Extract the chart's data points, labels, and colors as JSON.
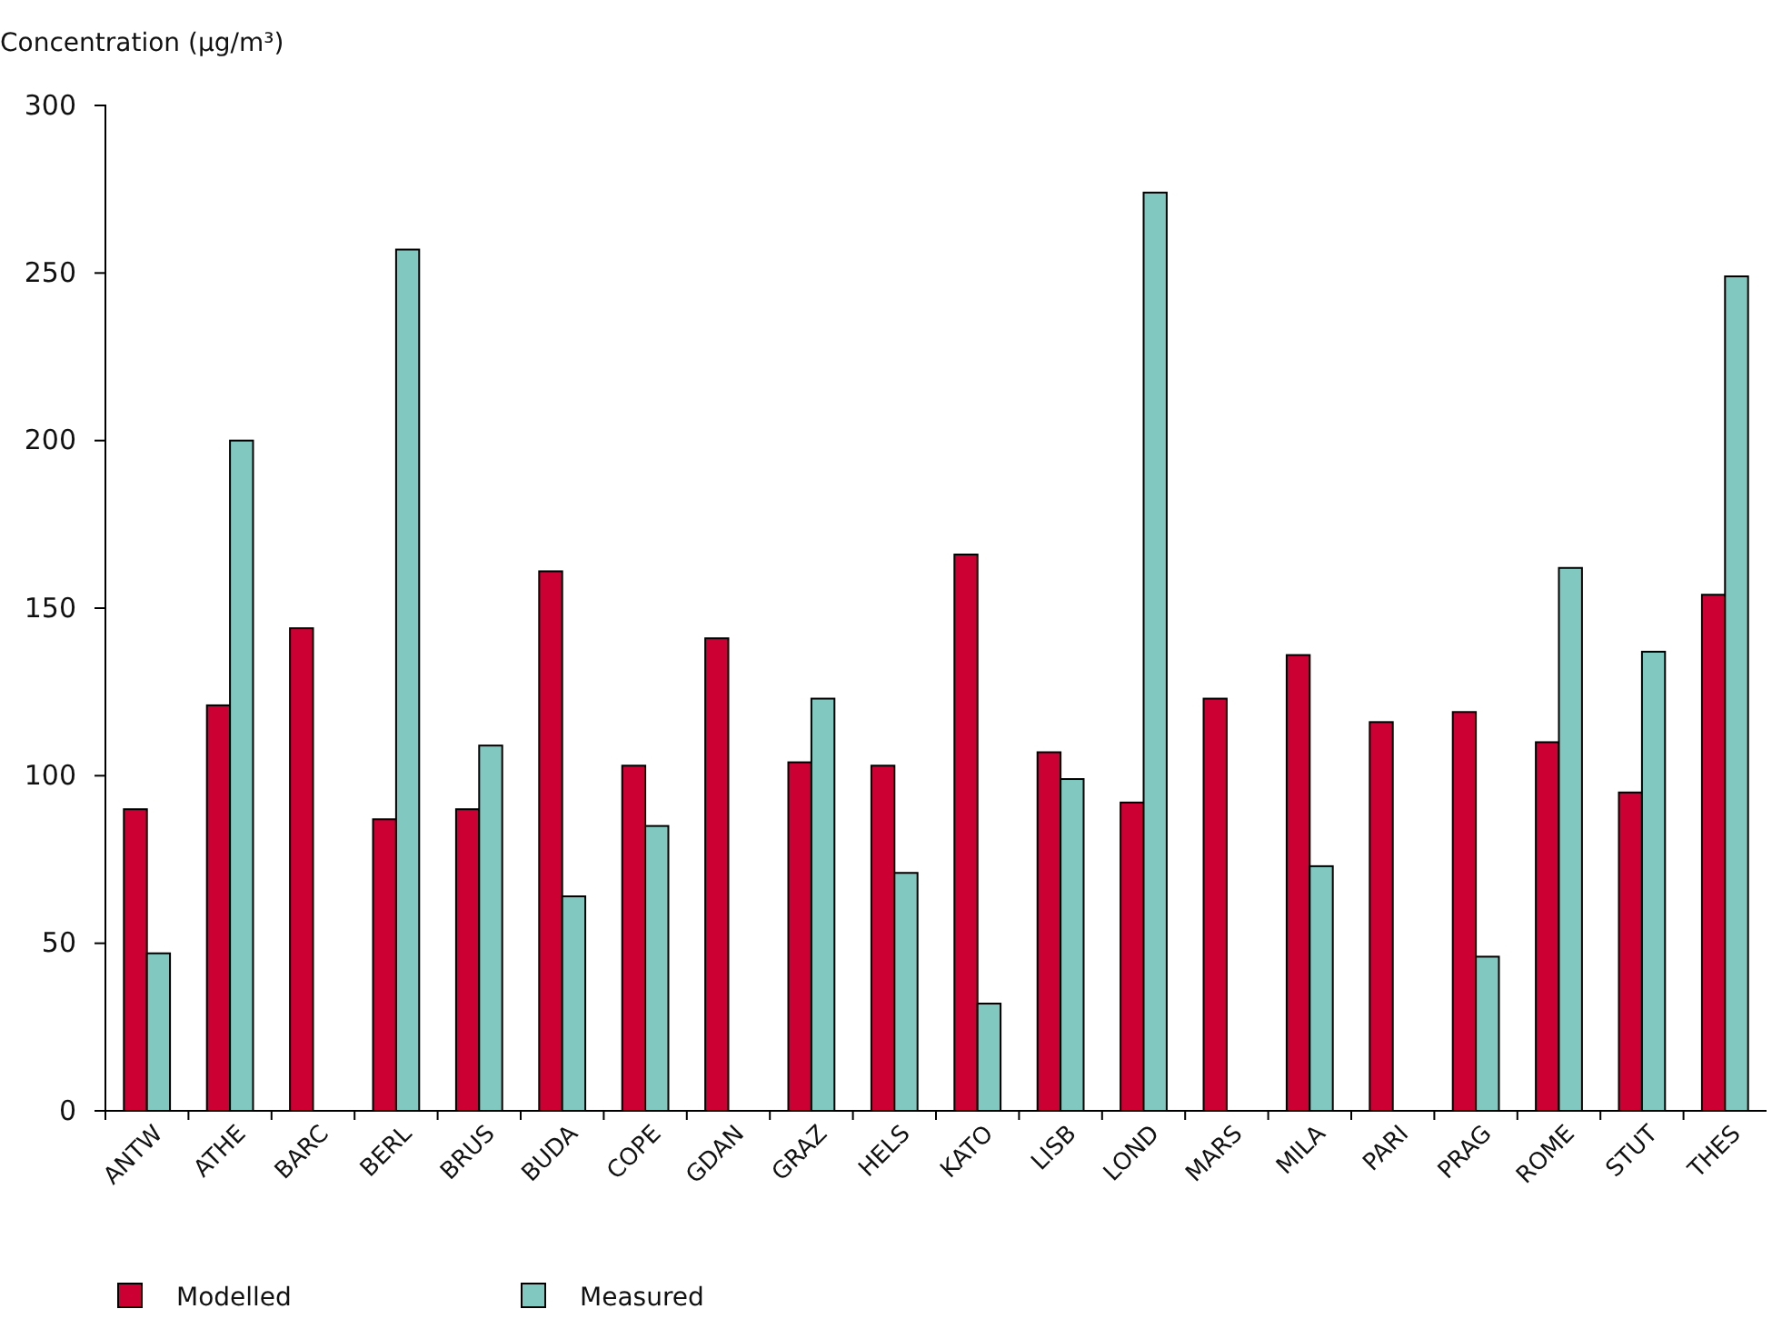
{
  "chart_data": {
    "type": "bar",
    "ylabel": "Concentration (µg/m³)",
    "categories": [
      "ANTW",
      "ATHE",
      "BARC",
      "BERL",
      "BRUS",
      "BUDA",
      "COPE",
      "GDAN",
      "GRAZ",
      "HELS",
      "KATO",
      "LISB",
      "LOND",
      "MARS",
      "MILA",
      "PARI",
      "PRAG",
      "ROME",
      "STUT",
      "THES"
    ],
    "series": [
      {
        "name": "Modelled",
        "color": "#cc0033",
        "values": [
          90,
          121,
          144,
          87,
          90,
          161,
          103,
          141,
          104,
          103,
          166,
          107,
          92,
          123,
          136,
          116,
          119,
          110,
          95,
          154
        ]
      },
      {
        "name": "Measured",
        "color": "#80c8c0",
        "values": [
          47,
          200,
          null,
          257,
          109,
          64,
          85,
          null,
          123,
          71,
          32,
          99,
          274,
          null,
          73,
          null,
          46,
          162,
          137,
          249
        ]
      }
    ],
    "ylim": [
      0,
      300
    ],
    "yticks": [
      0,
      50,
      100,
      150,
      200,
      250,
      300
    ],
    "grid": false,
    "legend": "bottom left"
  }
}
